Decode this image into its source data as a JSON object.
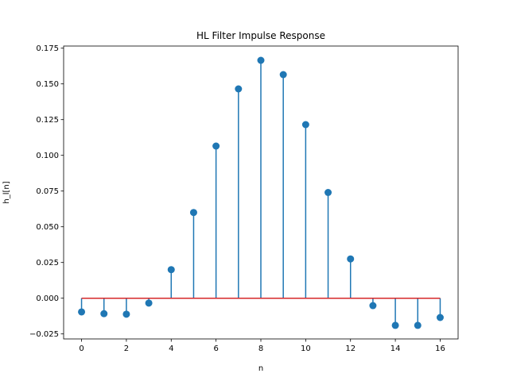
{
  "chart_data": {
    "type": "stem",
    "title": "HL Filter Impulse Response",
    "xlabel": "n",
    "ylabel": "h_l[n]",
    "x": [
      0,
      1,
      2,
      3,
      4,
      5,
      6,
      7,
      8,
      9,
      10,
      11,
      12,
      13,
      14,
      15,
      16
    ],
    "values": [
      -0.0096,
      -0.0108,
      -0.0112,
      -0.0034,
      0.02,
      0.06,
      0.1065,
      0.1465,
      0.1665,
      0.1565,
      0.1215,
      0.074,
      0.0275,
      -0.0052,
      -0.019,
      -0.019,
      -0.0135
    ],
    "xlim": [
      -0.8,
      16.8
    ],
    "ylim": [
      -0.0285,
      0.1765
    ],
    "xticks": [
      0,
      2,
      4,
      6,
      8,
      10,
      12,
      14,
      16
    ],
    "xtick_labels": [
      "0",
      "2",
      "4",
      "6",
      "8",
      "10",
      "12",
      "14",
      "16"
    ],
    "yticks": [
      -0.025,
      0,
      0.025,
      0.05,
      0.075,
      0.1,
      0.125,
      0.15,
      0.175
    ],
    "ytick_labels": [
      "−0.025",
      "0.000",
      "0.025",
      "0.050",
      "0.075",
      "0.100",
      "0.125",
      "0.150",
      "0.175"
    ],
    "grid": false,
    "colors": {
      "stem": "#1f77b4",
      "marker": "#1f77b4",
      "baseline": "#d62728"
    }
  }
}
